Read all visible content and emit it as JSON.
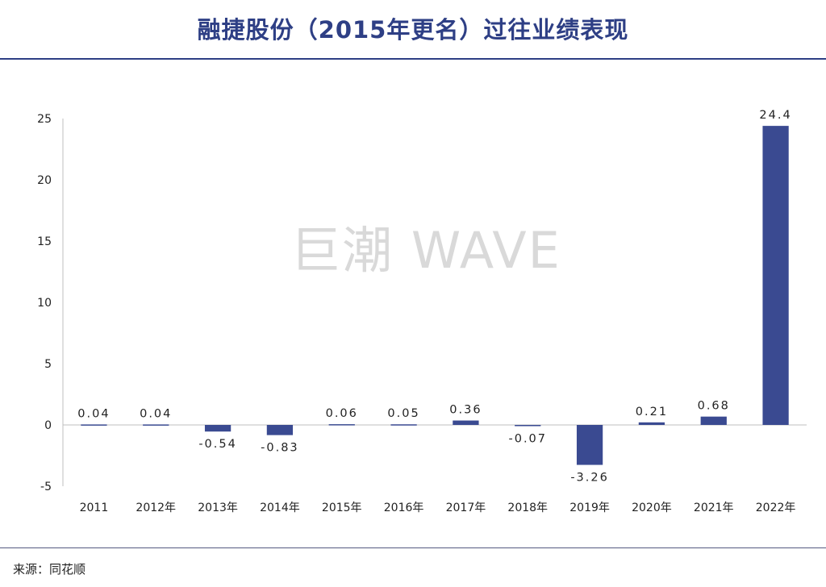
{
  "header": {
    "title": "融捷股份（2015年更名）过往业绩表现"
  },
  "footer": {
    "source": "来源：同花顺"
  },
  "watermark": "巨潮 WAVE",
  "colors": {
    "bar": "#3a4a91",
    "title": "#2e3f85",
    "axis": "#bfbfbf"
  },
  "chart_data": {
    "type": "bar",
    "title": "融捷股份（2015年更名）过往业绩表现",
    "categories": [
      "2011",
      "2012年",
      "2013年",
      "2014年",
      "2015年",
      "2016年",
      "2017年",
      "2018年",
      "2019年",
      "2020年",
      "2021年",
      "2022年"
    ],
    "values": [
      0.04,
      0.04,
      -0.54,
      -0.83,
      0.06,
      0.05,
      0.36,
      -0.07,
      -3.26,
      0.21,
      0.68,
      24.4
    ],
    "data_labels": [
      "0.04",
      "0.04",
      "-0.54",
      "-0.83",
      "0.06",
      "0.05",
      "0.36",
      "-0.07",
      "-3.26",
      "0.21",
      "0.68",
      "24.4"
    ],
    "y_ticks": [
      25,
      20,
      15,
      10,
      5,
      0,
      -5
    ],
    "ylim": [
      -5,
      25
    ],
    "xlabel": "",
    "ylabel": "",
    "grid": false,
    "legend": "none"
  }
}
